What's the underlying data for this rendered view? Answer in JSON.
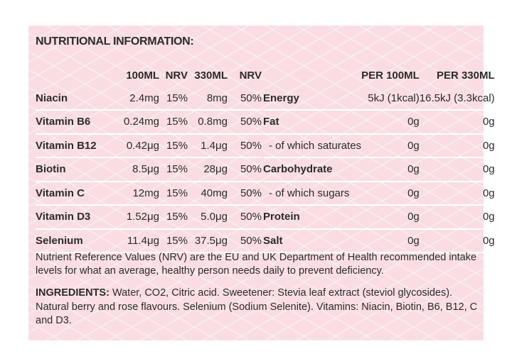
{
  "title": "NUTRITIONAL INFORMATION:",
  "vitamins": {
    "headers": [
      "",
      "100ML",
      "NRV",
      "330ML",
      "NRV"
    ],
    "rows": [
      {
        "name": "Niacin",
        "per100": "2.4mg",
        "nrv100": "15%",
        "per330": "8mg",
        "nrv330": "50%"
      },
      {
        "name": "Vitamin B6",
        "per100": "0.24mg",
        "nrv100": "15%",
        "per330": "0.8mg",
        "nrv330": "50%"
      },
      {
        "name": "Vitamin B12",
        "per100": "0.42μg",
        "nrv100": "15%",
        "per330": "1.4μg",
        "nrv330": "50%"
      },
      {
        "name": "Biotin",
        "per100": "8.5μg",
        "nrv100": "15%",
        "per330": "28μg",
        "nrv330": "50%"
      },
      {
        "name": "Vitamin C",
        "per100": "12mg",
        "nrv100": "15%",
        "per330": "40mg",
        "nrv330": "50%"
      },
      {
        "name": "Vitamin D3",
        "per100": "1.52μg",
        "nrv100": "15%",
        "per330": "5.0μg",
        "nrv330": "50%"
      },
      {
        "name": "Selenium",
        "per100": "11.4μg",
        "nrv100": "15%",
        "per330": "37.5μg",
        "nrv330": "50%"
      }
    ]
  },
  "nutrition": {
    "headers": [
      "",
      "PER 100ML",
      "PER 330ML"
    ],
    "rows": [
      {
        "name": "Energy",
        "per100": "5kJ (1kcal)",
        "per330": "16.5kJ (3.3kcal)",
        "sub": false
      },
      {
        "name": "Fat",
        "per100": "0g",
        "per330": "0g",
        "sub": false
      },
      {
        "name": "- of which saturates",
        "per100": "0g",
        "per330": "0g",
        "sub": true
      },
      {
        "name": "Carbohydrate",
        "per100": "0g",
        "per330": "0g",
        "sub": false
      },
      {
        "name": "- of which sugars",
        "per100": "0g",
        "per330": "0g",
        "sub": true
      },
      {
        "name": "Protein",
        "per100": "0g",
        "per330": "0g",
        "sub": false
      },
      {
        "name": "Salt",
        "per100": "0g",
        "per330": "0g",
        "sub": false
      }
    ]
  },
  "nrv_note": "Nutrient Reference Values (NRV) are the EU and UK Department of Health recommended intake levels for what an average, healthy person needs daily to prevent deficiency.",
  "ingredients": {
    "label": "INGREDIENTS:",
    "text": " Water, CO2, Citric acid. Sweetener: Stevia leaf extract (steviol glycosides). Natural berry and rose flavours. Selenium (Sodium Selenite). Vitamins: Niacin, Biotin, B6, B12, C and D3."
  },
  "colors": {
    "panel_background": "#f9dde3",
    "divider": "#ffffff",
    "text": "#2b2b2b"
  }
}
